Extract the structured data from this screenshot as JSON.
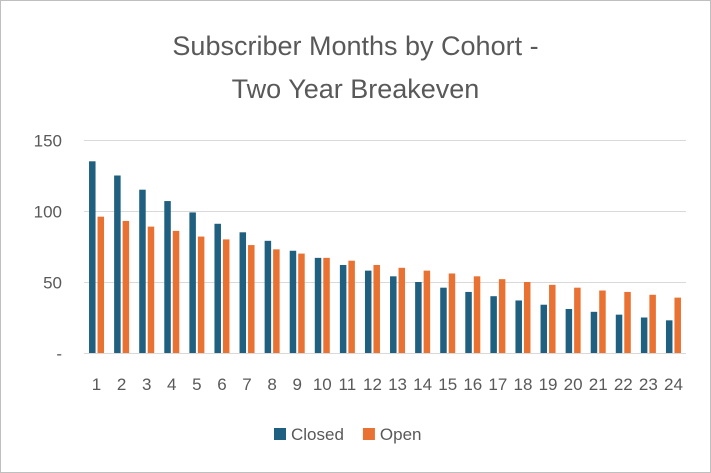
{
  "chart_data": {
    "type": "bar",
    "title_lines": [
      "Subscriber Months by Cohort -",
      "Two Year Breakeven"
    ],
    "xlabel": "",
    "ylabel": "",
    "categories": [
      "1",
      "2",
      "3",
      "4",
      "5",
      "6",
      "7",
      "8",
      "9",
      "10",
      "11",
      "12",
      "13",
      "14",
      "15",
      "16",
      "17",
      "18",
      "19",
      "20",
      "21",
      "22",
      "23",
      "24"
    ],
    "y_ticks": [
      {
        "value": 0,
        "label": "-"
      },
      {
        "value": 50,
        "label": "50"
      },
      {
        "value": 100,
        "label": "100"
      },
      {
        "value": 150,
        "label": "150"
      }
    ],
    "ylim": [
      0,
      150
    ],
    "grid": true,
    "legend_position": "bottom",
    "series": [
      {
        "name": "Closed",
        "color": "#1f5f7f",
        "values": [
          135,
          125,
          115,
          107,
          99,
          91,
          85,
          79,
          72,
          67,
          62,
          58,
          54,
          50,
          46,
          43,
          40,
          37,
          34,
          31,
          29,
          27,
          25,
          23
        ]
      },
      {
        "name": "Open",
        "color": "#e97132",
        "values": [
          96,
          93,
          89,
          86,
          82,
          80,
          76,
          73,
          70,
          67,
          65,
          62,
          60,
          58,
          56,
          54,
          52,
          50,
          48,
          46,
          44,
          43,
          41,
          39
        ]
      }
    ]
  }
}
